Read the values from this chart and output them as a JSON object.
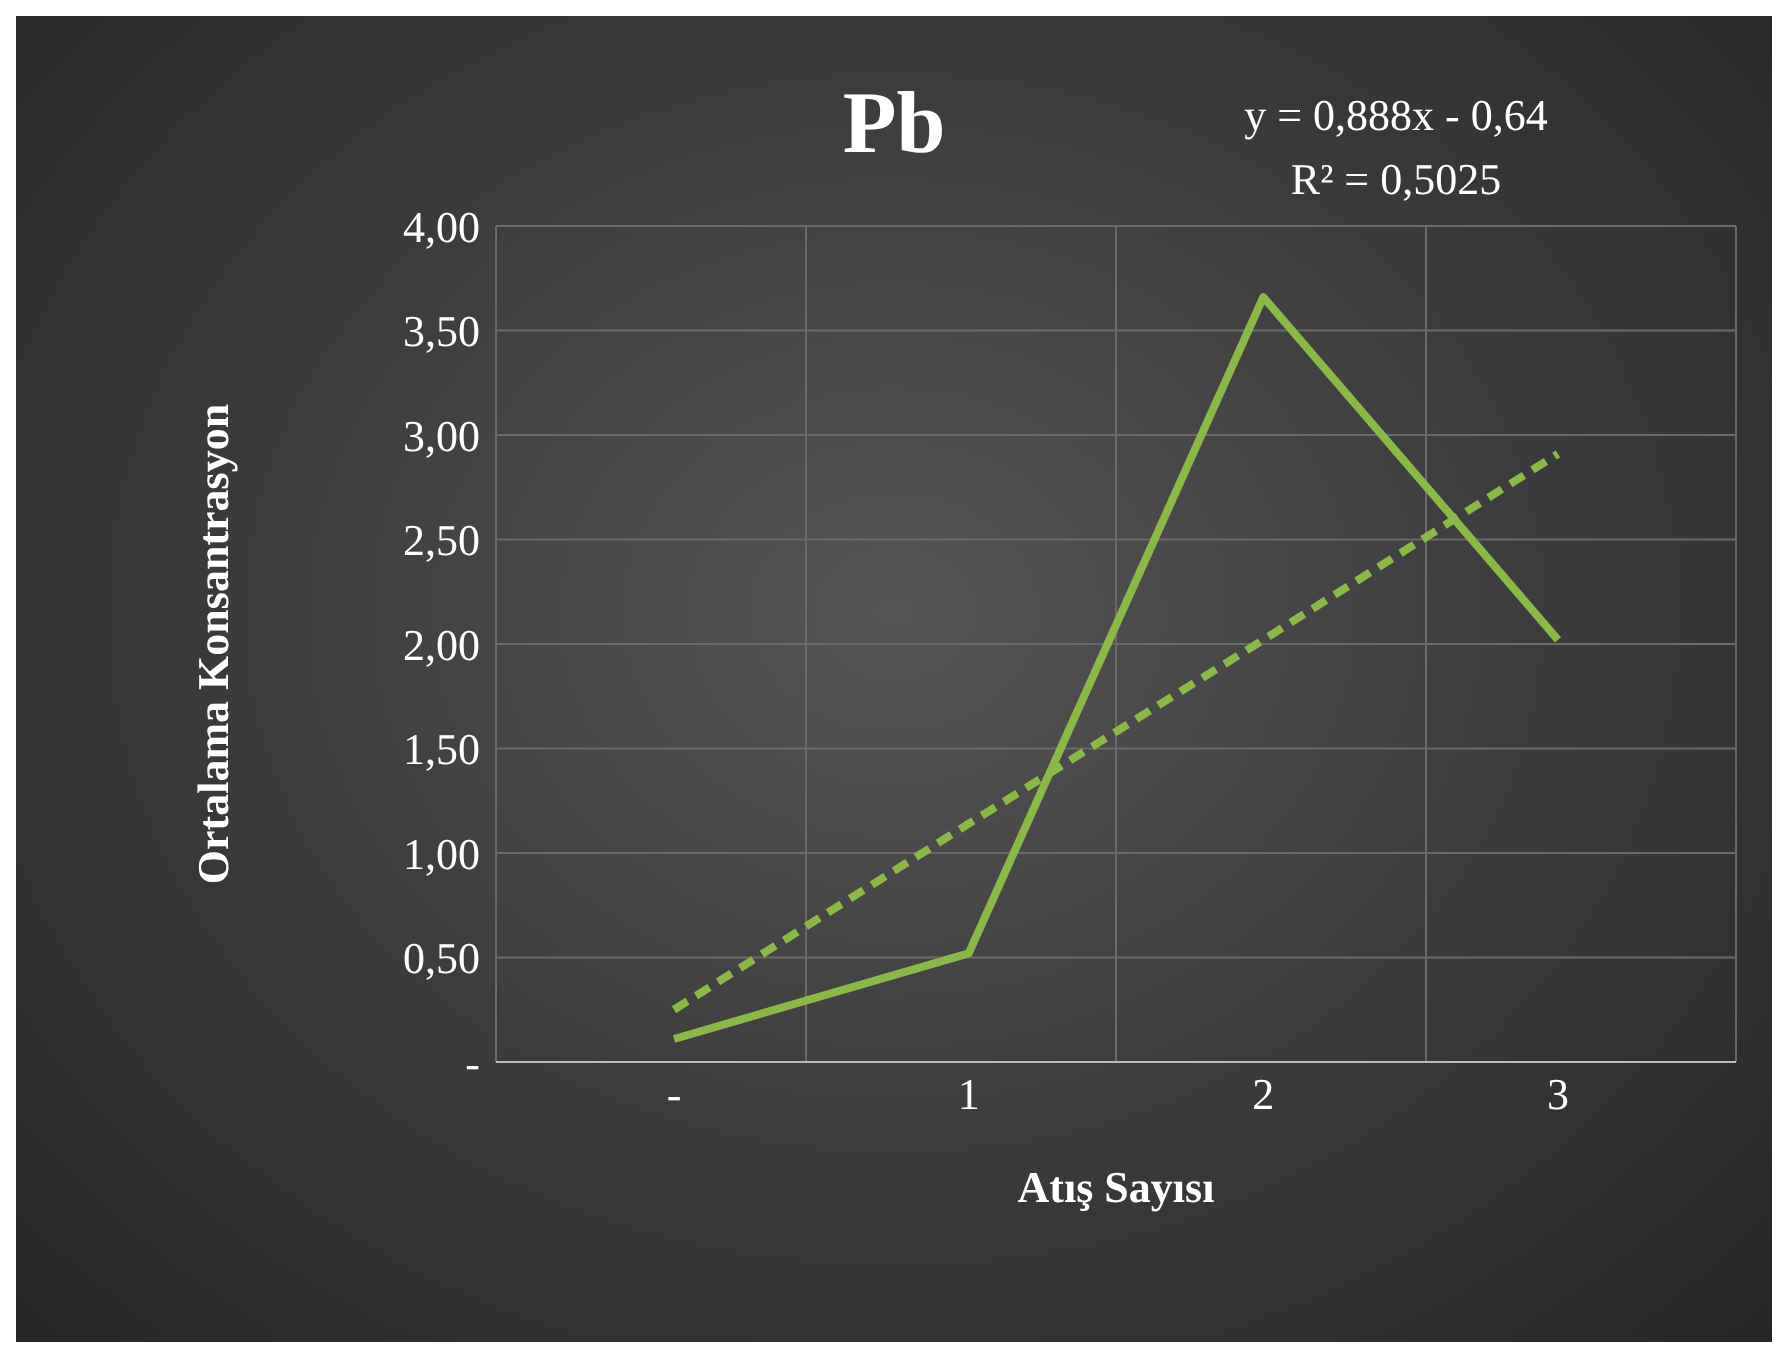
{
  "chart_data": {
    "type": "line",
    "title": "Pb",
    "xlabel": "Atış Sayısı",
    "ylabel": "Ortalama Konsantrasyon",
    "annotations": [
      "y = 0,888x - 0,64",
      "R² = 0,5025"
    ],
    "categories": [
      "-",
      "1",
      "2",
      "3"
    ],
    "series": [
      {
        "color": "#8cb84a",
        "values": [
          0.11,
          0.52,
          3.66,
          2.02
        ],
        "line_style": "solid"
      },
      {
        "color": "#8cb84a",
        "values": [
          0.25,
          1.14,
          2.02,
          2.91
        ],
        "line_style": "dashed"
      }
    ],
    "ylim": [
      0,
      4
    ],
    "yticks": [
      {
        "value": 0,
        "label": "-"
      },
      {
        "value": 0.5,
        "label": "0,50"
      },
      {
        "value": 1,
        "label": "1,00"
      },
      {
        "value": 1.5,
        "label": "1,50"
      },
      {
        "value": 2,
        "label": "2,00"
      },
      {
        "value": 2.5,
        "label": "2,50"
      },
      {
        "value": 3,
        "label": "3,00"
      },
      {
        "value": 3.5,
        "label": "3,50"
      },
      {
        "value": 4,
        "label": "4,00"
      }
    ],
    "grid": true,
    "marker": "none"
  }
}
